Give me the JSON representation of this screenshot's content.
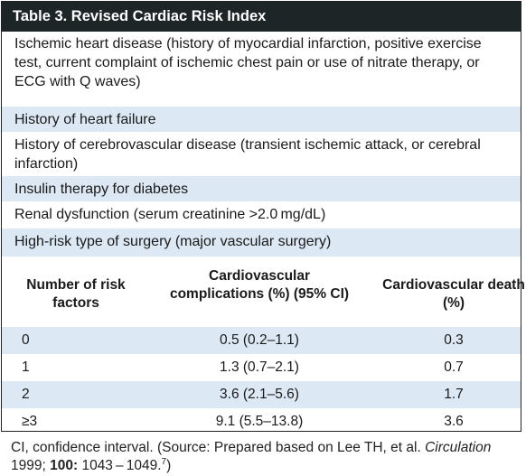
{
  "table": {
    "title": "Table 3.  Revised Cardiac Risk Index",
    "criteria": [
      "Ischemic heart disease (history of myocardial infarction, positive exercise test, current complaint of ischemic chest pain or use of nitrate therapy, or ECG with Q waves)",
      "History of heart failure",
      "History of cerebrovascular disease (transient ischemic attack, or cerebral infarction)",
      "Insulin therapy for diabetes",
      "Renal dysfunction (serum creatinine >2.0 mg/dL)",
      "High-risk type of surgery (major vascular surgery)"
    ],
    "headers": {
      "number": "Number of risk factors",
      "complications": "Cardiovascular complications (%) (95% CI)",
      "death": "Cardiovascular death (%)"
    },
    "rows": [
      {
        "n": "0",
        "comp": "0.5 (0.2–1.1)",
        "death": "0.3"
      },
      {
        "n": "1",
        "comp": "1.3 (0.7–2.1)",
        "death": "0.7"
      },
      {
        "n": "2",
        "comp": "3.6 (2.1–5.6)",
        "death": "1.7"
      },
      {
        "n": "≥3",
        "comp": "9.1 (5.5–13.8)",
        "death": "3.6"
      }
    ]
  },
  "footnote": {
    "text1": "CI, confidence interval. (Source: Prepared based on Lee TH, et al. ",
    "journal": "Circulation",
    "text2": " 1999; ",
    "volume": "100:",
    "text3": " 1043 – 1049.",
    "ref": "7",
    "text4": ")"
  }
}
